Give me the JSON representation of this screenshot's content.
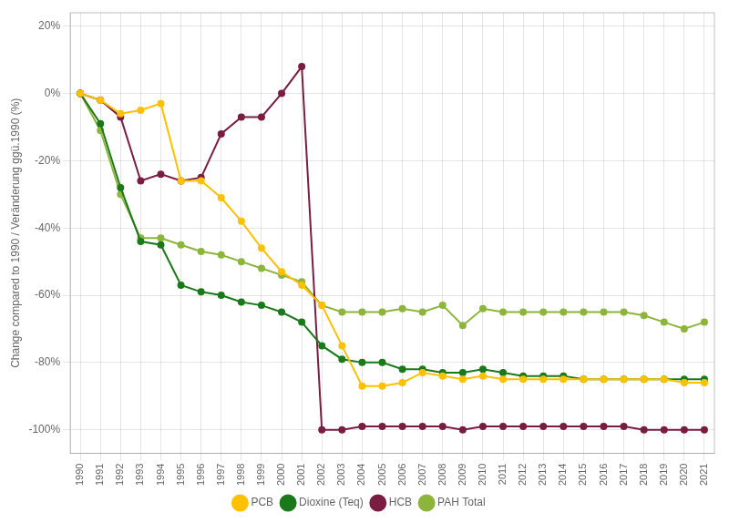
{
  "chart_data": {
    "type": "line",
    "y_label": "Change compared to 1990 / Veränderung ggü.1990 (%)",
    "x": [
      1990,
      1991,
      1992,
      1993,
      1994,
      1995,
      1996,
      1997,
      1998,
      1999,
      2000,
      2001,
      2002,
      2003,
      2004,
      2005,
      2006,
      2007,
      2008,
      2009,
      2010,
      2011,
      2012,
      2013,
      2014,
      2015,
      2016,
      2017,
      2018,
      2019,
      2020,
      2021
    ],
    "series": [
      {
        "name": "PCB",
        "color": "#FFC000",
        "marker": "circle",
        "line_style": "solid",
        "values": [
          0,
          -2,
          -6,
          -5,
          -3,
          -26,
          -26,
          -31,
          -38,
          -46,
          -53,
          -57,
          -63,
          -75,
          -87,
          -87,
          -86,
          -83,
          -84,
          -85,
          -84,
          -85,
          -85,
          -85,
          -85,
          -85,
          -85,
          -85,
          -85,
          -85,
          -86,
          -86
        ]
      },
      {
        "name": "Dioxine (Teq)",
        "color": "#1a7a1a",
        "marker": "circle",
        "line_style": "solid",
        "values": [
          0,
          -9,
          -28,
          -44,
          -45,
          -57,
          -59,
          -60,
          -62,
          -63,
          -65,
          -68,
          -75,
          -79,
          -80,
          -80,
          -82,
          -82,
          -83,
          -83,
          -82,
          -83,
          -84,
          -84,
          -84,
          -85,
          -85,
          -85,
          -85,
          -85,
          -85,
          -85
        ]
      },
      {
        "name": "HCB",
        "color": "#7B1C42",
        "marker": "circle",
        "line_style": "solid",
        "values": [
          0,
          -2,
          -7,
          -26,
          -24,
          -26,
          -25,
          -12,
          -7,
          -7,
          0,
          8,
          -100,
          -100,
          -99,
          -99,
          -99,
          -99,
          -99,
          -100,
          -99,
          -99,
          -99,
          -99,
          -99,
          -99,
          -99,
          -99,
          -100,
          -100,
          -100,
          -100
        ]
      },
      {
        "name": "PAH Total",
        "color": "#8DB53C",
        "marker": "circle",
        "line_style": "solid",
        "values": [
          0,
          -11,
          -30,
          -43,
          -43,
          -45,
          -47,
          -48,
          -50,
          -52,
          -54,
          -56,
          -63,
          -65,
          -65,
          -65,
          -64,
          -65,
          -63,
          -69,
          -64,
          -65,
          -65,
          -65,
          -65,
          -65,
          -65,
          -65,
          -66,
          -68,
          -70,
          -68
        ]
      }
    ],
    "xlim": [
      1989.5,
      2021.5
    ],
    "xticks": [
      1990,
      1991,
      1992,
      1993,
      1994,
      1995,
      1996,
      1997,
      1998,
      1999,
      2000,
      2001,
      2002,
      2003,
      2004,
      2005,
      2006,
      2007,
      2008,
      2009,
      2010,
      2011,
      2012,
      2013,
      2014,
      2015,
      2016,
      2017,
      2018,
      2019,
      2020,
      2021
    ],
    "ylim": [
      -107,
      24
    ],
    "yticks": [
      {
        "value": 20,
        "label": "20%"
      },
      {
        "value": 0,
        "label": "0%"
      },
      {
        "value": -20,
        "label": "-20%"
      },
      {
        "value": -40,
        "label": "-40%"
      },
      {
        "value": -60,
        "label": "-60%"
      },
      {
        "value": -80,
        "label": "-80%"
      },
      {
        "value": -100,
        "label": "-100%"
      }
    ],
    "grid": true,
    "legend": "bottom"
  }
}
